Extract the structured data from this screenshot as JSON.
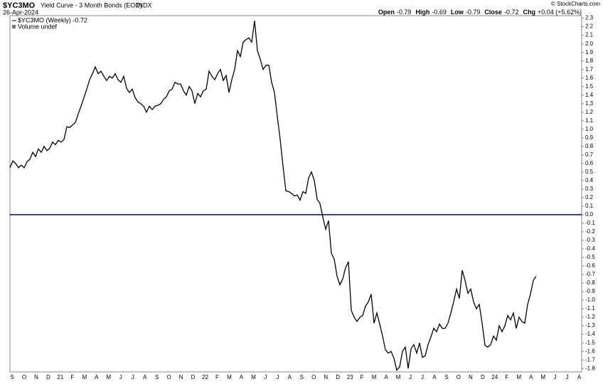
{
  "chart_data": {
    "type": "line",
    "symbol": "$YC3MO",
    "title": "Yield Curve - 3 Month Bonds (EOD)",
    "exchange": "INDX",
    "date": "26-Apr-2024",
    "copyright": "© StockCharts.com",
    "quote": [
      {
        "label": "Open",
        "value": -0.79
      },
      {
        "label": "High",
        "value": -0.69
      },
      {
        "label": "Low",
        "value": -0.79
      },
      {
        "label": "Close",
        "value": -0.72
      },
      {
        "label": "Chg",
        "value": "+0.04 (+5.62%)"
      }
    ],
    "legend": [
      "$YC3MO (Weekly) -0.72",
      "Volume undef"
    ],
    "x_labels": [
      "S",
      "O",
      "N",
      "D",
      "21",
      "F",
      "M",
      "A",
      "M",
      "J",
      "J",
      "A",
      "S",
      "O",
      "N",
      "D",
      "22",
      "F",
      "M",
      "A",
      "M",
      "J",
      "J",
      "A",
      "S",
      "O",
      "N",
      "D",
      "23",
      "F",
      "M",
      "A",
      "M",
      "J",
      "J",
      "A",
      "S",
      "O",
      "N",
      "D",
      "24",
      "F",
      "M",
      "A",
      "M",
      "J",
      "J",
      "A"
    ],
    "series": [
      {
        "name": "$YC3MO",
        "color": "#000000",
        "values": [
          0.55,
          0.63,
          0.6,
          0.55,
          0.58,
          0.55,
          0.62,
          0.65,
          0.73,
          0.68,
          0.77,
          0.73,
          0.8,
          0.75,
          0.78,
          0.85,
          0.82,
          0.87,
          0.85,
          0.88,
          1.03,
          1.02,
          1.05,
          1.08,
          1.18,
          1.27,
          1.37,
          1.47,
          1.58,
          1.65,
          1.73,
          1.65,
          1.68,
          1.62,
          1.57,
          1.62,
          1.6,
          1.65,
          1.58,
          1.55,
          1.62,
          1.48,
          1.43,
          1.47,
          1.37,
          1.32,
          1.3,
          1.27,
          1.2,
          1.27,
          1.23,
          1.27,
          1.28,
          1.3,
          1.35,
          1.38,
          1.45,
          1.47,
          1.55,
          1.53,
          1.53,
          1.45,
          1.4,
          1.5,
          1.45,
          1.3,
          1.42,
          1.38,
          1.45,
          1.47,
          1.68,
          1.62,
          1.58,
          1.65,
          1.7,
          1.57,
          1.63,
          1.43,
          1.58,
          1.7,
          1.92,
          1.85,
          2.02,
          2.05,
          2.07,
          2.02,
          2.27,
          1.92,
          1.82,
          1.7,
          1.75,
          1.75,
          1.55,
          1.43,
          1.15,
          0.88,
          0.57,
          0.28,
          0.27,
          0.25,
          0.22,
          0.23,
          0.17,
          0.27,
          0.25,
          0.43,
          0.5,
          0.4,
          0.18,
          0.13,
          -0.03,
          -0.17,
          -0.07,
          -0.45,
          -0.52,
          -0.72,
          -0.82,
          -0.75,
          -0.62,
          -0.55,
          -1.12,
          -1.2,
          -1.25,
          -1.2,
          -1.18,
          -1.07,
          -1.02,
          -0.93,
          -1.27,
          -1.15,
          -1.28,
          -1.42,
          -1.58,
          -1.62,
          -1.6,
          -1.68,
          -1.82,
          -1.78,
          -1.6,
          -1.55,
          -1.8,
          -1.57,
          -1.52,
          -1.62,
          -1.5,
          -1.67,
          -1.65,
          -1.52,
          -1.43,
          -1.33,
          -1.37,
          -1.28,
          -1.33,
          -1.33,
          -1.27,
          -1.15,
          -1.02,
          -0.87,
          -0.98,
          -0.65,
          -0.77,
          -0.92,
          -0.87,
          -1.02,
          -1.1,
          -1.05,
          -1.27,
          -1.53,
          -1.55,
          -1.52,
          -1.42,
          -1.47,
          -1.3,
          -1.37,
          -1.3,
          -1.18,
          -1.23,
          -1.15,
          -1.33,
          -1.2,
          -1.25,
          -1.27,
          -1.05,
          -0.93,
          -0.77,
          -0.72
        ]
      }
    ],
    "ylim": [
      -1.84,
      2.33
    ],
    "yticks": [
      2.3,
      2.2,
      2.1,
      {
        "value": 2,
        "label": "2.0"
      },
      1.9,
      1.8,
      1.7,
      1.6,
      1.5,
      1.4,
      1.3,
      1.2,
      1.1,
      {
        "value": 1,
        "label": "1.0"
      },
      0.9,
      0.8,
      0.7,
      0.6,
      0.5,
      0.4,
      0.3,
      0.2,
      0.1,
      {
        "value": 0,
        "label": "0.0"
      },
      -0.1,
      -0.2,
      -0.3,
      -0.4,
      -0.5,
      -0.6,
      -0.7,
      -0.8,
      -0.9,
      {
        "value": -1,
        "label": "-1.0"
      },
      -1.1,
      -1.2,
      -1.3,
      -1.4,
      -1.5,
      -1.6,
      -1.7,
      -1.8
    ],
    "reference_line": {
      "value": 0,
      "color": "#00008b"
    }
  }
}
